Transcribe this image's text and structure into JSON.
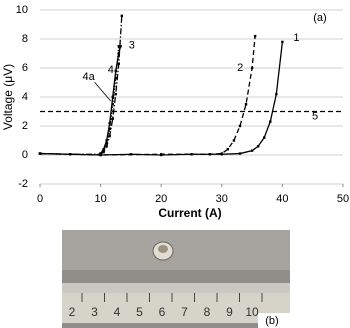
{
  "chart_data": {
    "type": "line",
    "panel_label": "(a)",
    "x_label": "Current (A)",
    "y_label": "Voltage (μV)",
    "xlim": [
      0,
      50
    ],
    "xticks": [
      0,
      10,
      20,
      30,
      40,
      50
    ],
    "ylim": [
      -2,
      10
    ],
    "yticks": [
      -2,
      0,
      2,
      4,
      6,
      8,
      10
    ],
    "grid": true,
    "series": [
      {
        "name": "1",
        "color": "#000000",
        "dash": "solid",
        "x": [
          0,
          5,
          10,
          15,
          20,
          25,
          30,
          33,
          35,
          36,
          37,
          38,
          39,
          40
        ],
        "values": [
          0.1,
          0.05,
          0,
          0.05,
          0,
          0.05,
          0.05,
          0.1,
          0.3,
          0.6,
          1.2,
          2.3,
          4.2,
          7.8
        ]
      },
      {
        "name": "2",
        "color": "#000000",
        "dash": "dashed",
        "x": [
          0,
          10,
          20,
          28,
          30,
          31,
          32,
          33,
          34,
          35,
          35.5
        ],
        "values": [
          0.1,
          0,
          0.05,
          0.05,
          0.1,
          0.4,
          1,
          2,
          3.5,
          6,
          8.2
        ]
      },
      {
        "name": "3",
        "color": "#000000",
        "dash": "dashdot",
        "x": [
          0,
          5,
          10,
          10.5,
          11,
          11.5,
          12,
          12.5,
          13,
          13.5
        ],
        "values": [
          0.1,
          0.05,
          0.05,
          0.2,
          0.6,
          1.3,
          2.5,
          4.2,
          6.3,
          9.6
        ]
      },
      {
        "name": "4",
        "color": "#000000",
        "dash": "dotted",
        "x": [
          10,
          10.5,
          11,
          11.5,
          12,
          12.5,
          13
        ],
        "values": [
          0.1,
          0.3,
          0.8,
          1.8,
          3.5,
          5.3,
          7.5
        ]
      },
      {
        "name": "4a",
        "color": "#000000",
        "dash": "solid",
        "x": [
          10,
          10.5,
          11,
          11.5,
          12,
          12.5,
          13,
          13.3
        ],
        "values": [
          0.1,
          0.4,
          1,
          2.2,
          4,
          5.8,
          7,
          7.5
        ]
      },
      {
        "name": "5",
        "color": "#000000",
        "dash": "dashed",
        "x": [
          0,
          50
        ],
        "values": [
          3,
          3
        ]
      }
    ]
  },
  "photo": {
    "label": "(b)",
    "ruler_labels": [
      "2",
      "3",
      "4",
      "5",
      "6",
      "7",
      "8",
      "9",
      "10"
    ]
  }
}
